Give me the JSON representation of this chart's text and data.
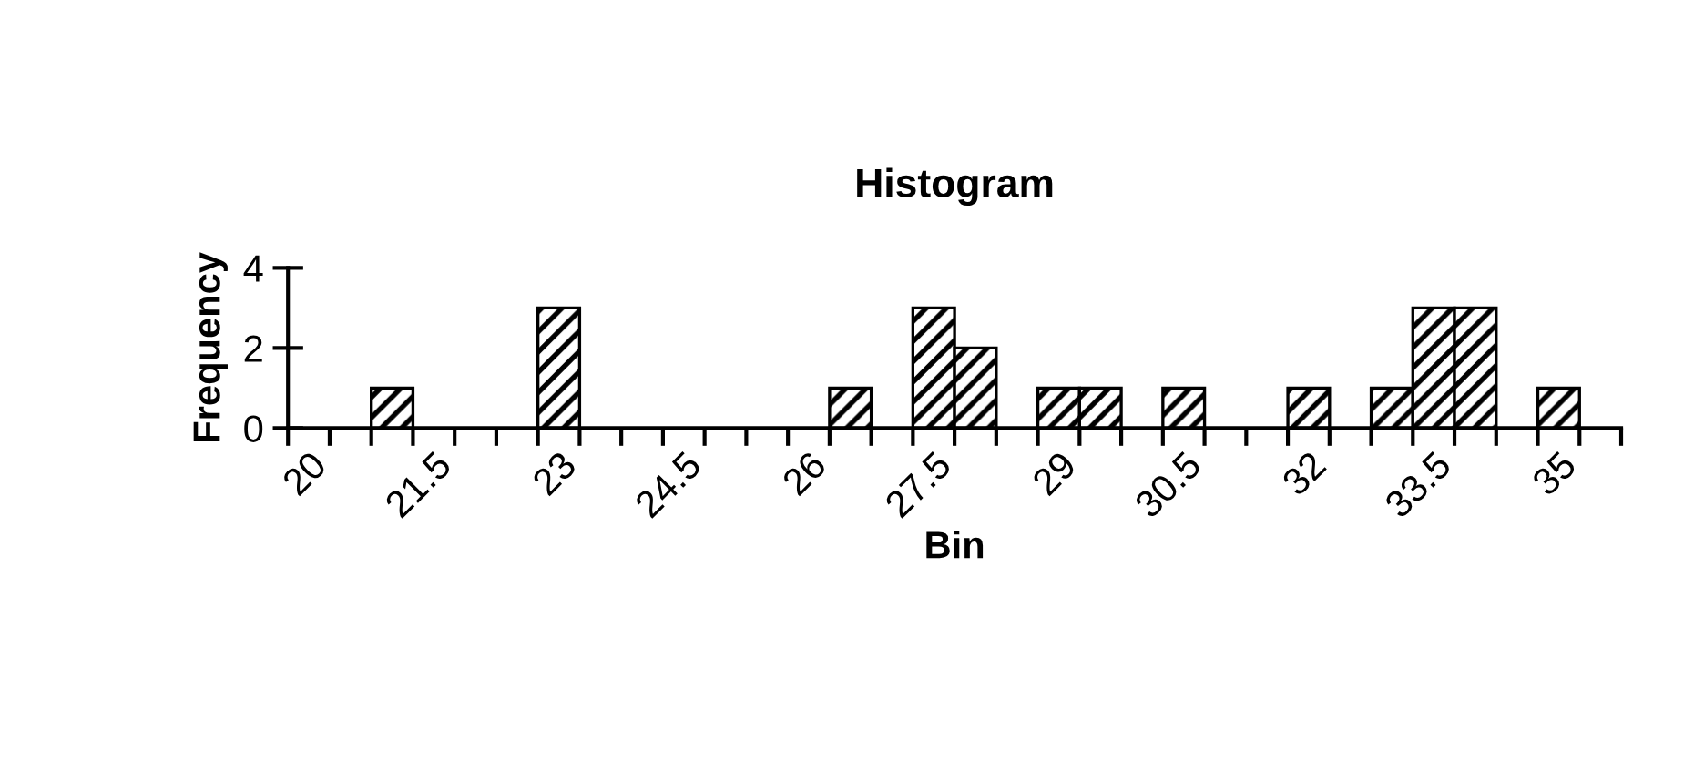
{
  "chart_data": {
    "type": "bar",
    "title": "Histogram",
    "xlabel": "Bin",
    "ylabel": "Frequency",
    "categories": [
      "20",
      null,
      null,
      "21.5",
      null,
      null,
      "23",
      null,
      null,
      "24.5",
      null,
      null,
      "26",
      null,
      null,
      "27.5",
      null,
      null,
      "29",
      null,
      null,
      "30.5",
      null,
      null,
      "32",
      null,
      null,
      "33.5",
      null,
      null,
      "35",
      null
    ],
    "values": [
      0,
      0,
      1,
      0,
      0,
      0,
      3,
      0,
      0,
      0,
      0,
      0,
      0,
      1,
      0,
      3,
      2,
      0,
      1,
      1,
      0,
      1,
      0,
      0,
      1,
      0,
      1,
      3,
      3,
      0,
      1,
      0
    ],
    "color": "#000000",
    "ylim": [
      0,
      4
    ],
    "yticks": [
      0,
      2,
      4
    ],
    "grid": false,
    "legend": false
  }
}
